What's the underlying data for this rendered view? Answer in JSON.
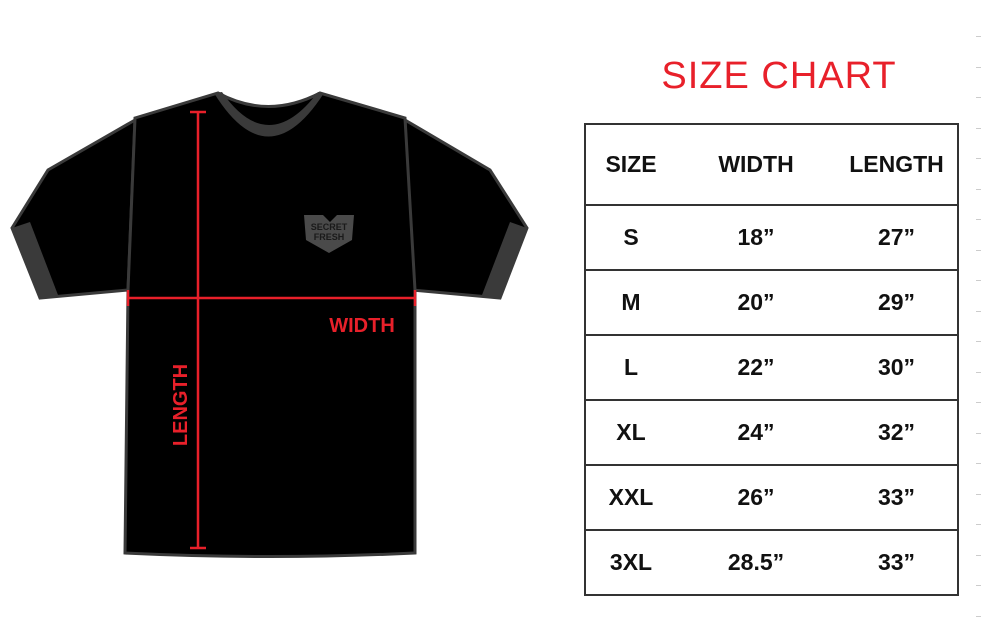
{
  "title": "SIZE CHART",
  "headers": [
    "SIZE",
    "WIDTH",
    "LENGTH"
  ],
  "rows": [
    [
      "S",
      "18”",
      "27”"
    ],
    [
      "M",
      "20”",
      "29”"
    ],
    [
      "L",
      "22”",
      "30”"
    ],
    [
      "XL",
      "24”",
      "32”"
    ],
    [
      "XXL",
      "26”",
      "33”"
    ],
    [
      "3XL",
      "28.5”",
      "33”"
    ]
  ],
  "shirt": {
    "logo_text": "SECRET FRESH",
    "width_label": "WIDTH",
    "length_label": "LENGTH",
    "measure_color": "#e8202a",
    "shirt_color": "#000000",
    "trim_color": "#3a3a3a"
  }
}
